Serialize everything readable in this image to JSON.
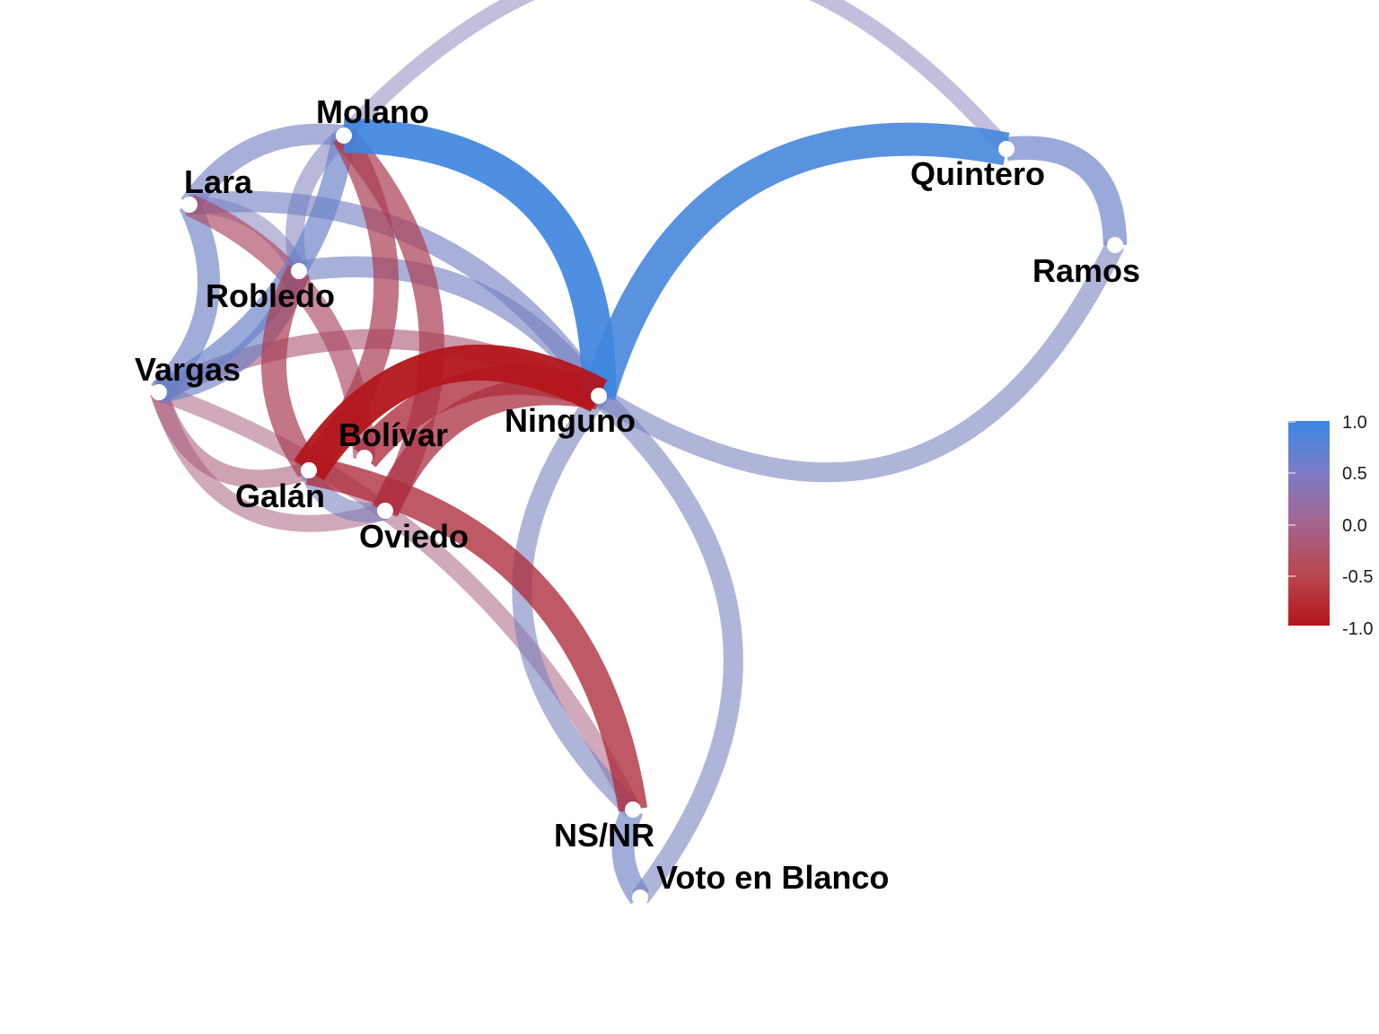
{
  "network": {
    "nodes": [
      {
        "id": "molano",
        "label": "Molano"
      },
      {
        "id": "lara",
        "label": "Lara"
      },
      {
        "id": "robledo",
        "label": "Robledo"
      },
      {
        "id": "vargas",
        "label": "Vargas"
      },
      {
        "id": "bolivar",
        "label": "Bolívar"
      },
      {
        "id": "galan",
        "label": "Galán"
      },
      {
        "id": "oviedo",
        "label": "Oviedo"
      },
      {
        "id": "ninguno",
        "label": "Ninguno"
      },
      {
        "id": "quintero",
        "label": "Quintero"
      },
      {
        "id": "ramos",
        "label": "Ramos"
      },
      {
        "id": "nsnr",
        "label": "NS/NR"
      },
      {
        "id": "blanco",
        "label": "Voto en Blanco"
      }
    ],
    "edges": [
      {
        "from": "molano",
        "to": "quintero",
        "value": 0.25
      },
      {
        "from": "quintero",
        "to": "ramos",
        "value": 0.55
      },
      {
        "from": "ramos",
        "to": "ninguno",
        "value": 0.4
      },
      {
        "from": "molano",
        "to": "ninguno",
        "value": 0.95
      },
      {
        "from": "ninguno",
        "to": "quintero",
        "value": 0.9
      },
      {
        "from": "molano",
        "to": "lara",
        "value": 0.45
      },
      {
        "from": "molano",
        "to": "robledo",
        "value": 0.35
      },
      {
        "from": "molano",
        "to": "vargas",
        "value": 0.55
      },
      {
        "from": "molano",
        "to": "galan",
        "value": -0.6
      },
      {
        "from": "molano",
        "to": "oviedo",
        "value": -0.6
      },
      {
        "from": "lara",
        "to": "ninguno",
        "value": 0.45
      },
      {
        "from": "lara",
        "to": "robledo",
        "value": 0.3
      },
      {
        "from": "lara",
        "to": "vargas",
        "value": 0.5
      },
      {
        "from": "lara",
        "to": "bolivar",
        "value": -0.5
      },
      {
        "from": "robledo",
        "to": "ninguno",
        "value": 0.45
      },
      {
        "from": "robledo",
        "to": "vargas",
        "value": 0.5
      },
      {
        "from": "robledo",
        "to": "galan",
        "value": -0.6
      },
      {
        "from": "vargas",
        "to": "ninguno",
        "value": -0.4
      },
      {
        "from": "vargas",
        "to": "galan",
        "value": -0.35
      },
      {
        "from": "vargas",
        "to": "oviedo",
        "value": -0.3
      },
      {
        "from": "vargas",
        "to": "nsnr",
        "value": -0.3
      },
      {
        "from": "galan",
        "to": "ninguno",
        "value": -1.0
      },
      {
        "from": "galan",
        "to": "nsnr",
        "value": -0.75
      },
      {
        "from": "bolivar",
        "to": "ninguno",
        "value": -0.75
      },
      {
        "from": "oviedo",
        "to": "ninguno",
        "value": -0.7
      },
      {
        "from": "galan",
        "to": "oviedo",
        "value": 0.4
      },
      {
        "from": "ninguno",
        "to": "nsnr",
        "value": 0.4
      },
      {
        "from": "ninguno",
        "to": "blanco",
        "value": 0.4
      },
      {
        "from": "nsnr",
        "to": "blanco",
        "value": 0.5
      }
    ]
  },
  "legend": {
    "ticks": [
      "1.0",
      "0.5",
      "0.0",
      "-0.5",
      "-1.0"
    ],
    "colors": {
      "high": "#3a87e2",
      "mid": "#a07aa8",
      "low": "#b3161b"
    }
  }
}
